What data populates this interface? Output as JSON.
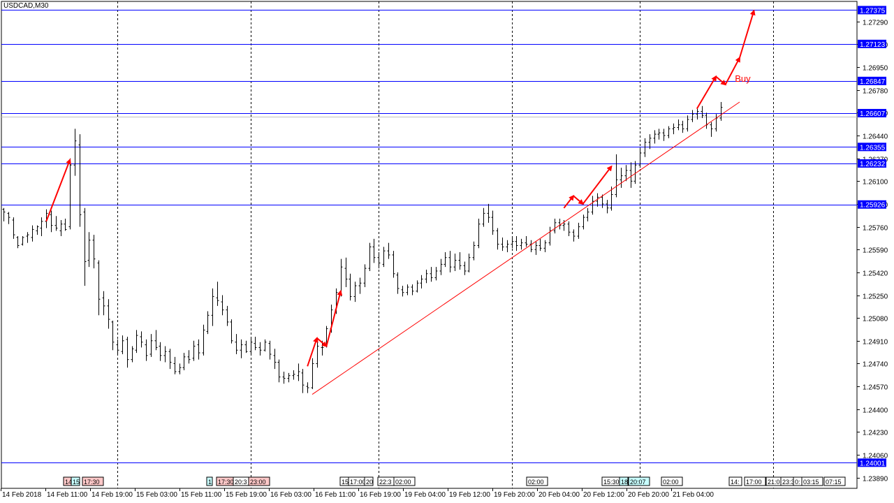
{
  "chart_data": {
    "type": "candlestick",
    "symbol": "USDCAD,M30",
    "ylim": [
      1.2381,
      1.2744
    ],
    "y_ticks": [
      "1.27290",
      "1.27120",
      "1.26950",
      "1.26780",
      "1.26610",
      "1.26440",
      "1.26270",
      "1.26100",
      "1.25930",
      "1.25760",
      "1.25590",
      "1.25420",
      "1.25250",
      "1.25080",
      "1.24910",
      "1.24740",
      "1.24570",
      "1.24400",
      "1.24230",
      "1.24060",
      "1.23890"
    ],
    "y_tick_values": [
      1.2729,
      1.2712,
      1.2695,
      1.2678,
      1.2661,
      1.2644,
      1.2627,
      1.261,
      1.2593,
      1.2576,
      1.2559,
      1.2542,
      1.2525,
      1.2508,
      1.2491,
      1.2474,
      1.2457,
      1.244,
      1.2423,
      1.2406,
      1.2389
    ],
    "x_ticks": [
      "14 Feb 2018",
      "14 Feb 11:00",
      "14 Feb 19:00",
      "15 Feb 03:00",
      "15 Feb 11:00",
      "15 Feb 19:00",
      "16 Feb 03:00",
      "16 Feb 11:00",
      "16 Feb 19:00",
      "19 Feb 04:00",
      "19 Feb 12:00",
      "19 Feb 20:00",
      "20 Feb 04:00",
      "20 Feb 12:00",
      "20 Feb 20:00",
      "21 Feb 04:00"
    ],
    "horizontal_levels": [
      {
        "value": 1.27375,
        "label": "1.27375"
      },
      {
        "value": 1.27123,
        "label": "1.27123"
      },
      {
        "value": 1.26847,
        "label": "1.26847"
      },
      {
        "value": 1.26607,
        "label": "1.26607"
      },
      {
        "value": 1.26355,
        "label": "1.26355"
      },
      {
        "value": 1.26232,
        "label": "1.26232"
      },
      {
        "value": 1.25926,
        "label": "1.25926"
      },
      {
        "value": 1.24001,
        "label": "1.24001"
      }
    ],
    "bid_level": 1.2658,
    "trendline": {
      "from": {
        "bar": 65,
        "price": 1.2451
      },
      "to": {
        "bar": 155,
        "price": 1.2669
      }
    },
    "arrow_paths": [
      [
        [
          9,
          1.258
        ],
        [
          14,
          1.2626
        ]
      ],
      [
        [
          64,
          1.2472
        ],
        [
          66,
          1.2493
        ],
        [
          68,
          1.2487
        ],
        [
          71,
          1.2528
        ]
      ],
      [
        [
          118,
          1.259
        ],
        [
          120,
          1.2599
        ],
        [
          122,
          1.2593
        ],
        [
          128,
          1.2621
        ]
      ],
      [
        [
          146,
          1.2664
        ],
        [
          150,
          1.2688
        ],
        [
          152,
          1.2682
        ],
        [
          155,
          1.2702
        ],
        [
          158,
          1.2737
        ]
      ]
    ],
    "annotation": {
      "text": "Buy",
      "bar": 154,
      "price": 1.2684
    },
    "vertical_lines_bars": [
      24,
      52,
      79,
      107,
      134,
      162
    ],
    "time_markers": [
      "14",
      "15",
      "17:30",
      "1",
      "17:30",
      "20:3",
      "23:00",
      "15",
      "17:00",
      "20",
      "22:3",
      "02:00",
      "02:00",
      "15:30",
      "18",
      "20:07",
      "02:00",
      "14:",
      "17:00",
      "21:0",
      "23:3",
      "0:",
      "03:15",
      "07:15"
    ],
    "ohlc": [
      [
        1.2589,
        1.259,
        1.258,
        1.2587
      ],
      [
        1.2586,
        1.2587,
        1.2578,
        1.2583
      ],
      [
        1.2581,
        1.2583,
        1.2567,
        1.257
      ],
      [
        1.2568,
        1.2569,
        1.256,
        1.2562
      ],
      [
        1.2563,
        1.2569,
        1.2562,
        1.2568
      ],
      [
        1.2569,
        1.2572,
        1.2564,
        1.257
      ],
      [
        1.2568,
        1.2577,
        1.2565,
        1.2574
      ],
      [
        1.2573,
        1.2577,
        1.257,
        1.2576
      ],
      [
        1.2575,
        1.2583,
        1.2569,
        1.258
      ],
      [
        1.258,
        1.2589,
        1.2575,
        1.2586
      ],
      [
        1.2585,
        1.2588,
        1.2572,
        1.2577
      ],
      [
        1.2577,
        1.2584,
        1.2573,
        1.2575
      ],
      [
        1.2573,
        1.2581,
        1.2569,
        1.2578
      ],
      [
        1.2578,
        1.2582,
        1.2573,
        1.2574
      ],
      [
        1.2576,
        1.2627,
        1.2574,
        1.2622
      ],
      [
        1.2622,
        1.2649,
        1.2614,
        1.264
      ],
      [
        1.2637,
        1.2645,
        1.2576,
        1.2585
      ],
      [
        1.2587,
        1.259,
        1.2532,
        1.255
      ],
      [
        1.2551,
        1.2572,
        1.2546,
        1.2566
      ],
      [
        1.2566,
        1.257,
        1.2545,
        1.2552
      ],
      [
        1.2549,
        1.2551,
        1.251,
        1.2522
      ],
      [
        1.2523,
        1.2528,
        1.251,
        1.2517
      ],
      [
        1.2517,
        1.2522,
        1.25,
        1.2507
      ],
      [
        1.2505,
        1.2506,
        1.2484,
        1.249
      ],
      [
        1.2488,
        1.2492,
        1.248,
        1.2484
      ],
      [
        1.2483,
        1.2495,
        1.2481,
        1.2491
      ],
      [
        1.2492,
        1.2494,
        1.2471,
        1.2477
      ],
      [
        1.2477,
        1.2487,
        1.2475,
        1.2485
      ],
      [
        1.2484,
        1.2499,
        1.2482,
        1.2495
      ],
      [
        1.2494,
        1.2498,
        1.2486,
        1.249
      ],
      [
        1.2488,
        1.2492,
        1.2476,
        1.248
      ],
      [
        1.2481,
        1.2496,
        1.2479,
        1.2491
      ],
      [
        1.2491,
        1.2499,
        1.2484,
        1.2486
      ],
      [
        1.2487,
        1.249,
        1.2476,
        1.248
      ],
      [
        1.248,
        1.2487,
        1.2475,
        1.2483
      ],
      [
        1.2483,
        1.2485,
        1.247,
        1.2475
      ],
      [
        1.2474,
        1.2479,
        1.2466,
        1.2468
      ],
      [
        1.2468,
        1.2474,
        1.2466,
        1.2471
      ],
      [
        1.2471,
        1.2482,
        1.2469,
        1.2479
      ],
      [
        1.2479,
        1.2484,
        1.2474,
        1.2477
      ],
      [
        1.2478,
        1.2491,
        1.2476,
        1.2487
      ],
      [
        1.2488,
        1.2492,
        1.2477,
        1.2482
      ],
      [
        1.2482,
        1.2503,
        1.248,
        1.2499
      ],
      [
        1.2498,
        1.2513,
        1.2496,
        1.251
      ],
      [
        1.251,
        1.253,
        1.2502,
        1.2524
      ],
      [
        1.2523,
        1.2535,
        1.2517,
        1.2521
      ],
      [
        1.252,
        1.2525,
        1.251,
        1.2514
      ],
      [
        1.2514,
        1.2517,
        1.2502,
        1.2505
      ],
      [
        1.2505,
        1.2507,
        1.2489,
        1.2491
      ],
      [
        1.249,
        1.2496,
        1.2481,
        1.2484
      ],
      [
        1.2484,
        1.2492,
        1.2478,
        1.2488
      ],
      [
        1.2488,
        1.2491,
        1.2482,
        1.2483
      ],
      [
        1.2483,
        1.2493,
        1.248,
        1.249
      ],
      [
        1.2489,
        1.2494,
        1.2484,
        1.2486
      ],
      [
        1.2486,
        1.249,
        1.248,
        1.2484
      ],
      [
        1.2484,
        1.2492,
        1.2483,
        1.249
      ],
      [
        1.2489,
        1.2491,
        1.2477,
        1.2481
      ],
      [
        1.248,
        1.2485,
        1.247,
        1.2475
      ],
      [
        1.2475,
        1.2477,
        1.246,
        1.2464
      ],
      [
        1.2464,
        1.2468,
        1.2459,
        1.2463
      ],
      [
        1.2463,
        1.2467,
        1.246,
        1.2465
      ],
      [
        1.2465,
        1.2469,
        1.2462,
        1.2466
      ],
      [
        1.2465,
        1.2474,
        1.2461,
        1.2468
      ],
      [
        1.2467,
        1.247,
        1.2452,
        1.2458
      ],
      [
        1.2457,
        1.246,
        1.2452,
        1.2456
      ],
      [
        1.2456,
        1.2478,
        1.2455,
        1.2474
      ],
      [
        1.2474,
        1.2493,
        1.2471,
        1.2487
      ],
      [
        1.2486,
        1.2491,
        1.248,
        1.2486
      ],
      [
        1.2487,
        1.2502,
        1.2486,
        1.25
      ],
      [
        1.25,
        1.2518,
        1.2497,
        1.2514
      ],
      [
        1.2514,
        1.253,
        1.2511,
        1.2527
      ],
      [
        1.2527,
        1.2552,
        1.2524,
        1.2546
      ],
      [
        1.2545,
        1.2553,
        1.2531,
        1.2537
      ],
      [
        1.2537,
        1.2541,
        1.2521,
        1.2524
      ],
      [
        1.2524,
        1.2535,
        1.252,
        1.2532
      ],
      [
        1.2532,
        1.2538,
        1.2526,
        1.2534
      ],
      [
        1.2534,
        1.2548,
        1.2531,
        1.2545
      ],
      [
        1.2545,
        1.2564,
        1.2543,
        1.2561
      ],
      [
        1.2561,
        1.2567,
        1.2549,
        1.2553
      ],
      [
        1.2553,
        1.2557,
        1.2545,
        1.2549
      ],
      [
        1.2548,
        1.2561,
        1.2546,
        1.2558
      ],
      [
        1.2558,
        1.2564,
        1.2552,
        1.2555
      ],
      [
        1.2555,
        1.2558,
        1.2538,
        1.2541
      ],
      [
        1.254,
        1.2542,
        1.2526,
        1.253
      ],
      [
        1.2529,
        1.2532,
        1.2524,
        1.2527
      ],
      [
        1.2527,
        1.2533,
        1.2525,
        1.2531
      ],
      [
        1.2531,
        1.2533,
        1.2525,
        1.2528
      ],
      [
        1.2528,
        1.2536,
        1.2527,
        1.2534
      ],
      [
        1.2534,
        1.254,
        1.253,
        1.2537
      ],
      [
        1.2537,
        1.2544,
        1.2534,
        1.2541
      ],
      [
        1.2541,
        1.2546,
        1.2535,
        1.2538
      ],
      [
        1.2538,
        1.2546,
        1.2536,
        1.2543
      ],
      [
        1.2543,
        1.2552,
        1.254,
        1.2548
      ],
      [
        1.2548,
        1.2557,
        1.2546,
        1.2553
      ],
      [
        1.2553,
        1.2558,
        1.2542,
        1.2546
      ],
      [
        1.2546,
        1.2556,
        1.2543,
        1.2551
      ],
      [
        1.2551,
        1.2557,
        1.2544,
        1.2547
      ],
      [
        1.2547,
        1.255,
        1.254,
        1.2543
      ],
      [
        1.2543,
        1.2556,
        1.2542,
        1.2553
      ],
      [
        1.2553,
        1.2565,
        1.2551,
        1.2562
      ],
      [
        1.2562,
        1.2582,
        1.256,
        1.2578
      ],
      [
        1.2578,
        1.259,
        1.2576,
        1.2586
      ],
      [
        1.2586,
        1.2593,
        1.2579,
        1.2583
      ],
      [
        1.2583,
        1.2588,
        1.257,
        1.2573
      ],
      [
        1.2573,
        1.2575,
        1.2559,
        1.2563
      ],
      [
        1.2563,
        1.2568,
        1.2558,
        1.2561
      ],
      [
        1.2561,
        1.2566,
        1.2557,
        1.2563
      ],
      [
        1.2563,
        1.2568,
        1.256,
        1.2565
      ],
      [
        1.2565,
        1.2569,
        1.2558,
        1.2562
      ],
      [
        1.2562,
        1.2567,
        1.2559,
        1.2564
      ],
      [
        1.2564,
        1.2569,
        1.2561,
        1.2563
      ],
      [
        1.2563,
        1.2566,
        1.2557,
        1.2559
      ],
      [
        1.2559,
        1.2565,
        1.2555,
        1.2562
      ],
      [
        1.2562,
        1.2567,
        1.2558,
        1.256
      ],
      [
        1.256,
        1.2566,
        1.2557,
        1.2564
      ],
      [
        1.2564,
        1.2576,
        1.2562,
        1.2573
      ],
      [
        1.2573,
        1.2582,
        1.2571,
        1.2579
      ],
      [
        1.2579,
        1.2582,
        1.2574,
        1.2577
      ],
      [
        1.2577,
        1.2581,
        1.2573,
        1.2578
      ],
      [
        1.2578,
        1.258,
        1.2569,
        1.2572
      ],
      [
        1.2572,
        1.2574,
        1.2565,
        1.2569
      ],
      [
        1.2569,
        1.2579,
        1.2567,
        1.2576
      ],
      [
        1.2576,
        1.2585,
        1.2574,
        1.2583
      ],
      [
        1.2583,
        1.259,
        1.258,
        1.2587
      ],
      [
        1.2587,
        1.2599,
        1.2585,
        1.2595
      ],
      [
        1.2595,
        1.2601,
        1.2591,
        1.2598
      ],
      [
        1.2598,
        1.26,
        1.259,
        1.2593
      ],
      [
        1.2593,
        1.2596,
        1.2586,
        1.259
      ],
      [
        1.259,
        1.2606,
        1.2588,
        1.26
      ],
      [
        1.26,
        1.263,
        1.2598,
        1.2611
      ],
      [
        1.2611,
        1.262,
        1.2605,
        1.2614
      ],
      [
        1.2614,
        1.2622,
        1.261,
        1.2618
      ],
      [
        1.2618,
        1.2624,
        1.2605,
        1.261
      ],
      [
        1.261,
        1.2625,
        1.2608,
        1.2622
      ],
      [
        1.2622,
        1.2635,
        1.262,
        1.2631
      ],
      [
        1.2631,
        1.2642,
        1.2628,
        1.2639
      ],
      [
        1.2639,
        1.2645,
        1.2634,
        1.2642
      ],
      [
        1.2642,
        1.2648,
        1.2638,
        1.2645
      ],
      [
        1.2645,
        1.2649,
        1.2641,
        1.2646
      ],
      [
        1.2646,
        1.2649,
        1.264,
        1.2644
      ],
      [
        1.2644,
        1.2651,
        1.2642,
        1.2649
      ],
      [
        1.2649,
        1.2653,
        1.2645,
        1.265
      ],
      [
        1.265,
        1.2656,
        1.2648,
        1.2652
      ],
      [
        1.2652,
        1.2655,
        1.2646,
        1.2649
      ],
      [
        1.2649,
        1.2659,
        1.2647,
        1.2656
      ],
      [
        1.2656,
        1.2663,
        1.2654,
        1.266
      ],
      [
        1.266,
        1.2665,
        1.2656,
        1.2662
      ],
      [
        1.2662,
        1.2666,
        1.2657,
        1.2659
      ],
      [
        1.2659,
        1.2661,
        1.2649,
        1.2652
      ],
      [
        1.2652,
        1.2654,
        1.2643,
        1.2649
      ],
      [
        1.2649,
        1.266,
        1.2647,
        1.2657
      ],
      [
        1.2657,
        1.2669,
        1.2655,
        1.2665
      ]
    ]
  }
}
